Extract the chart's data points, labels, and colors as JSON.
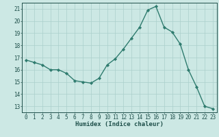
{
  "x": [
    0,
    1,
    2,
    3,
    4,
    5,
    6,
    7,
    8,
    9,
    10,
    11,
    12,
    13,
    14,
    15,
    16,
    17,
    18,
    19,
    20,
    21,
    22,
    23
  ],
  "y": [
    16.8,
    16.6,
    16.4,
    16.0,
    16.0,
    15.7,
    15.1,
    15.0,
    14.9,
    15.3,
    16.4,
    16.9,
    17.7,
    18.6,
    19.5,
    20.9,
    21.2,
    19.5,
    19.1,
    18.1,
    16.0,
    14.6,
    13.0,
    12.8
  ],
  "line_color": "#2e7b6e",
  "marker": "D",
  "marker_size": 2.2,
  "line_width": 1.0,
  "bg_color": "#cce8e4",
  "grid_color": "#aacfcb",
  "xlabel": "Humidex (Indice chaleur)",
  "xlim": [
    -0.5,
    23.5
  ],
  "ylim": [
    12.5,
    21.5
  ],
  "yticks": [
    13,
    14,
    15,
    16,
    17,
    18,
    19,
    20,
    21
  ],
  "xticks": [
    0,
    1,
    2,
    3,
    4,
    5,
    6,
    7,
    8,
    9,
    10,
    11,
    12,
    13,
    14,
    15,
    16,
    17,
    18,
    19,
    20,
    21,
    22,
    23
  ],
  "tick_color": "#1e4f4a",
  "label_fontsize": 6.5,
  "tick_fontsize": 5.5,
  "spine_color": "#1e4f4a"
}
